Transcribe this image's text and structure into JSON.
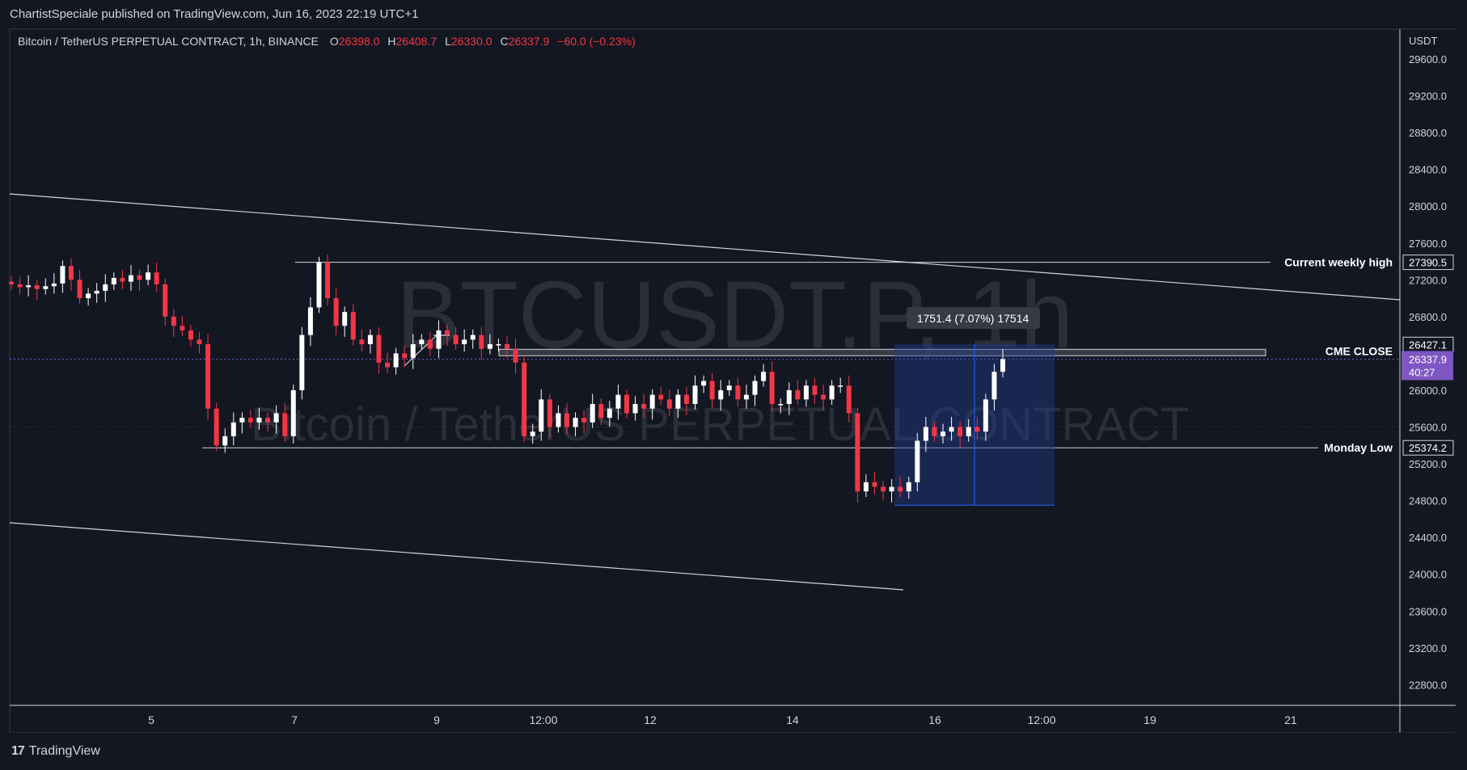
{
  "header": {
    "published_line": "ChartistSpeciale published on TradingView.com, Jun 16, 2023 22:19 UTC+1"
  },
  "legend": {
    "symbol": "Bitcoin / TetherUS PERPETUAL CONTRACT, 1h, BINANCE",
    "o_label": "O",
    "o_value": "26398.0",
    "h_label": "H",
    "h_value": "26408.7",
    "l_label": "L",
    "l_value": "26330.0",
    "c_label": "C",
    "c_value": "26337.9",
    "change": "−60.0 (−0.23%)"
  },
  "watermark": {
    "ticker": "BTCUSDT.P, 1h",
    "name": "Bitcoin / TetherUS PERPETUAL CONTRACT"
  },
  "footer": {
    "brand": "TradingView"
  },
  "colors": {
    "background": "#131722",
    "up": "#ffffff",
    "down": "#f23645",
    "accent": "#7e57c2",
    "range_fill": "#1e3a8a"
  },
  "chart_data": {
    "type": "candlestick",
    "currency": "USDT",
    "ylim": [
      22400,
      30000
    ],
    "y_ticks": [
      "29600.0",
      "29200.0",
      "28800.0",
      "28400.0",
      "28000.0",
      "27600.0",
      "27200.0",
      "26800.0",
      "26000.0",
      "25600.0",
      "25200.0",
      "24800.0",
      "24400.0",
      "24000.0",
      "23600.0",
      "23200.0",
      "22800.0"
    ],
    "x_ticks": [
      "5",
      "7",
      "9",
      "12:00",
      "12",
      "14",
      "16",
      "12:00",
      "19",
      "21"
    ],
    "price_labels": [
      {
        "value": "27390.5",
        "text": "Current weekly high"
      },
      {
        "value": "26427.1",
        "text": "CME CLOSE"
      },
      {
        "value": "25374.2",
        "text": "Monday Low"
      }
    ],
    "current_price": {
      "value": "26337.9",
      "countdown": "40:27"
    },
    "measure_label": "1751.4 (7.07%) 17514",
    "series": [
      {
        "name": "BTCUSDT.P",
        "close": [
          27150,
          27120,
          27140,
          27100,
          27130,
          27160,
          27350,
          27200,
          27000,
          27050,
          27080,
          27150,
          27220,
          27180,
          27250,
          27200,
          27280,
          27150,
          26800,
          26700,
          26650,
          26550,
          26500,
          25800,
          25400,
          25500,
          25650,
          25700,
          25650,
          25700,
          25650,
          25750,
          25500,
          26000,
          26600,
          26900,
          27390,
          27000,
          26700,
          26850,
          26550,
          26500,
          26600,
          26300,
          26250,
          26400,
          26350,
          26500,
          26550,
          26450,
          26650,
          26600,
          26500,
          26550,
          26600,
          26450,
          26500,
          26500,
          26450,
          26300,
          25500,
          25550,
          25900,
          25600,
          25750,
          25600,
          25700,
          25650,
          25850,
          25700,
          25800,
          25950,
          25750,
          25850,
          25800,
          25950,
          25900,
          25800,
          25950,
          25850,
          26050,
          26100,
          25900,
          26000,
          26050,
          25900,
          25950,
          26100,
          26200,
          25850,
          25850,
          26000,
          25900,
          26050,
          25950,
          25900,
          26050,
          26050,
          25750,
          24900,
          25000,
          24950,
          24900,
          24950,
          24900,
          25000,
          25450,
          25600,
          25500,
          25550,
          25600,
          25500,
          25600,
          25550,
          25900,
          26200,
          26338
        ]
      }
    ]
  }
}
